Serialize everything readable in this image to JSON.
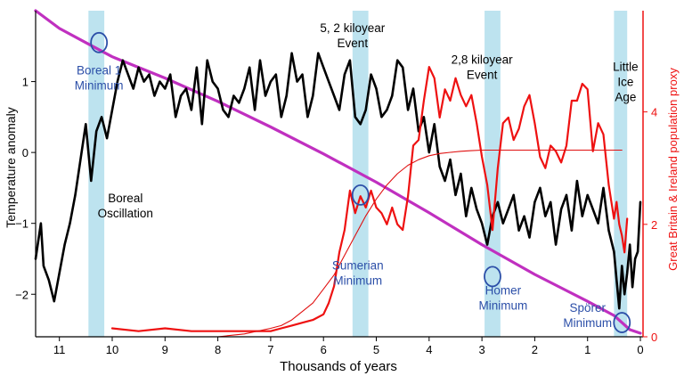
{
  "chart_data": {
    "type": "line",
    "xlabel": "Thousands of years",
    "ylabel_left": "Temperature anomaly",
    "ylabel_right": "Great Britain & Ireland population proxy",
    "x_reversed": true,
    "xlim": [
      11.45,
      -0.05
    ],
    "ylim_left": [
      -2.6,
      2.0
    ],
    "ylim_right": [
      0,
      5.8
    ],
    "x_ticks": [
      11,
      10,
      9,
      8,
      7,
      6,
      5,
      4,
      3,
      2,
      1,
      0
    ],
    "y_ticks_left": [
      1,
      0,
      -1,
      -2
    ],
    "y_ticks_right": [
      0,
      2,
      4
    ],
    "colors": {
      "temperature": "#000000",
      "population": "#ee1111",
      "logistic": "#e01010",
      "trend": "#c030c0",
      "bands": "#bde3ef",
      "annotation_blue": "#2c4fa8",
      "right_axis": "#ee1111"
    },
    "bands": [
      {
        "x0": 10.45,
        "x1": 10.15
      },
      {
        "x0": 5.45,
        "x1": 5.15
      },
      {
        "x0": 2.95,
        "x1": 2.65
      },
      {
        "x0": 0.5,
        "x1": 0.25
      }
    ],
    "series": [
      {
        "key": "temperature",
        "axis": "left",
        "x": [
          11.45,
          11.35,
          11.3,
          11.2,
          11.1,
          11.0,
          10.9,
          10.8,
          10.7,
          10.6,
          10.5,
          10.4,
          10.3,
          10.2,
          10.1,
          10.0,
          9.9,
          9.8,
          9.7,
          9.6,
          9.5,
          9.4,
          9.3,
          9.2,
          9.1,
          9.0,
          8.9,
          8.8,
          8.7,
          8.6,
          8.5,
          8.4,
          8.3,
          8.2,
          8.1,
          8.0,
          7.9,
          7.8,
          7.7,
          7.6,
          7.5,
          7.4,
          7.3,
          7.2,
          7.1,
          7.0,
          6.9,
          6.8,
          6.7,
          6.6,
          6.5,
          6.4,
          6.3,
          6.2,
          6.1,
          6.0,
          5.9,
          5.8,
          5.7,
          5.6,
          5.5,
          5.4,
          5.3,
          5.2,
          5.1,
          5.0,
          4.9,
          4.8,
          4.7,
          4.6,
          4.5,
          4.4,
          4.3,
          4.2,
          4.1,
          4.0,
          3.9,
          3.8,
          3.7,
          3.6,
          3.5,
          3.4,
          3.3,
          3.2,
          3.1,
          3.0,
          2.9,
          2.8,
          2.7,
          2.6,
          2.5,
          2.4,
          2.3,
          2.2,
          2.1,
          2.0,
          1.9,
          1.8,
          1.7,
          1.6,
          1.5,
          1.4,
          1.3,
          1.2,
          1.1,
          1.0,
          0.9,
          0.8,
          0.7,
          0.6,
          0.5,
          0.45,
          0.4,
          0.35,
          0.3,
          0.25,
          0.2,
          0.15,
          0.1,
          0.05,
          0.0
        ],
        "y": [
          -1.5,
          -1.0,
          -1.6,
          -1.8,
          -2.1,
          -1.7,
          -1.3,
          -1.0,
          -0.6,
          -0.1,
          0.4,
          -0.4,
          0.3,
          0.5,
          0.2,
          0.6,
          1.0,
          1.3,
          1.1,
          0.9,
          1.2,
          1.0,
          1.1,
          0.8,
          1.0,
          0.9,
          1.1,
          0.5,
          0.8,
          0.9,
          0.6,
          1.2,
          0.4,
          1.3,
          1.0,
          0.9,
          0.6,
          0.5,
          0.8,
          0.7,
          0.9,
          1.2,
          0.6,
          1.3,
          0.8,
          1.0,
          1.1,
          0.5,
          0.8,
          1.4,
          1.0,
          1.1,
          0.5,
          0.8,
          1.4,
          1.2,
          1.0,
          0.8,
          0.6,
          1.1,
          1.3,
          0.5,
          0.4,
          0.6,
          1.1,
          0.9,
          0.5,
          0.6,
          0.8,
          1.3,
          1.2,
          0.6,
          0.9,
          0.3,
          0.5,
          0.0,
          0.4,
          -0.2,
          -0.4,
          -0.1,
          -0.6,
          -0.3,
          -0.9,
          -0.5,
          -0.8,
          -1.0,
          -1.3,
          -0.9,
          -0.7,
          -1.0,
          -0.8,
          -0.6,
          -1.1,
          -0.9,
          -1.2,
          -0.7,
          -0.5,
          -0.9,
          -0.7,
          -1.3,
          -0.8,
          -0.6,
          -1.1,
          -0.4,
          -0.9,
          -0.6,
          -0.8,
          -1.0,
          -0.5,
          -1.1,
          -1.4,
          -1.8,
          -2.2,
          -1.6,
          -2.0,
          -1.7,
          -1.3,
          -1.9,
          -1.5,
          -1.4,
          -0.7
        ]
      },
      {
        "key": "population",
        "axis": "right",
        "x": [
          10.0,
          9.5,
          9.0,
          8.5,
          8.0,
          7.5,
          7.0,
          6.8,
          6.6,
          6.4,
          6.2,
          6.0,
          5.9,
          5.8,
          5.7,
          5.6,
          5.5,
          5.4,
          5.3,
          5.2,
          5.1,
          5.0,
          4.9,
          4.8,
          4.7,
          4.6,
          4.5,
          4.4,
          4.3,
          4.2,
          4.1,
          4.0,
          3.9,
          3.8,
          3.7,
          3.6,
          3.5,
          3.4,
          3.3,
          3.2,
          3.1,
          3.0,
          2.9,
          2.8,
          2.7,
          2.6,
          2.5,
          2.4,
          2.3,
          2.2,
          2.1,
          2.0,
          1.9,
          1.8,
          1.7,
          1.6,
          1.5,
          1.4,
          1.3,
          1.2,
          1.1,
          1.0,
          0.9,
          0.8,
          0.7,
          0.6,
          0.5,
          0.45,
          0.4,
          0.35,
          0.3,
          0.25
        ],
        "y": [
          0.15,
          0.1,
          0.15,
          0.1,
          0.1,
          0.1,
          0.1,
          0.15,
          0.2,
          0.25,
          0.3,
          0.4,
          0.6,
          0.9,
          1.5,
          1.9,
          2.6,
          2.2,
          2.5,
          2.3,
          2.6,
          2.3,
          2.2,
          2.0,
          2.3,
          2.0,
          1.9,
          2.5,
          3.4,
          3.5,
          4.2,
          4.8,
          4.6,
          3.9,
          4.4,
          4.2,
          4.6,
          4.3,
          4.1,
          4.3,
          3.8,
          3.2,
          2.7,
          1.9,
          3.0,
          3.8,
          3.9,
          3.5,
          3.7,
          4.1,
          4.3,
          3.8,
          3.2,
          3.0,
          3.4,
          3.3,
          3.1,
          3.4,
          4.2,
          4.2,
          4.5,
          4.4,
          3.3,
          3.8,
          3.6,
          2.7,
          2.1,
          2.4,
          2.0,
          1.8,
          1.5,
          2.1
        ]
      },
      {
        "key": "logistic",
        "axis": "right",
        "x": [
          8.0,
          7.5,
          7.0,
          6.8,
          6.6,
          6.4,
          6.2,
          6.0,
          5.8,
          5.6,
          5.4,
          5.2,
          5.0,
          4.8,
          4.6,
          4.4,
          4.2,
          4.0,
          3.8,
          3.6,
          3.4,
          3.2,
          3.0,
          2.5,
          2.0,
          1.5,
          1.0,
          0.5,
          0.35
        ],
        "y": [
          0.0,
          0.05,
          0.15,
          0.2,
          0.3,
          0.45,
          0.6,
          0.85,
          1.1,
          1.45,
          1.8,
          2.15,
          2.45,
          2.7,
          2.9,
          3.05,
          3.15,
          3.22,
          3.26,
          3.28,
          3.3,
          3.31,
          3.32,
          3.32,
          3.32,
          3.32,
          3.32,
          3.32,
          3.32
        ]
      },
      {
        "key": "trend",
        "axis": "left",
        "x": [
          11.45,
          11.0,
          10.5,
          10.0,
          9.0,
          8.0,
          7.0,
          6.0,
          5.0,
          4.0,
          3.0,
          2.0,
          1.0,
          0.5,
          0.2,
          0.0
        ],
        "y": [
          2.0,
          1.75,
          1.55,
          1.35,
          1.05,
          0.72,
          0.36,
          -0.02,
          -0.42,
          -0.85,
          -1.3,
          -1.72,
          -2.1,
          -2.3,
          -2.5,
          -2.55
        ]
      }
    ],
    "annotations": [
      {
        "key": "boreal1",
        "lines": [
          "Boreal 1",
          "Minimum"
        ],
        "x": 10.25,
        "y": 1.1,
        "color": "blue"
      },
      {
        "key": "boreal-osc",
        "lines": [
          "Boreal",
          "Oscillation"
        ],
        "x": 9.75,
        "y": -0.7,
        "color": "black"
      },
      {
        "key": "event52",
        "lines": [
          "5, 2 kiloyear",
          "Event"
        ],
        "x": 5.45,
        "y": 1.7,
        "color": "black"
      },
      {
        "key": "event28",
        "lines": [
          "2,8 kiloyear",
          "Event"
        ],
        "x": 3.0,
        "y": 1.25,
        "color": "black"
      },
      {
        "key": "lia",
        "lines": [
          "Little",
          "Ice",
          "Age"
        ],
        "x": 0.28,
        "y": 1.15,
        "color": "black"
      },
      {
        "key": "sumerian",
        "lines": [
          "Sumerian",
          "Minimum"
        ],
        "x": 5.35,
        "y": -1.65,
        "color": "blue"
      },
      {
        "key": "homer",
        "lines": [
          "Homer",
          "Minimum"
        ],
        "x": 2.6,
        "y": -2.0,
        "color": "blue"
      },
      {
        "key": "sporer",
        "lines": [
          "Spörer",
          "Minimum"
        ],
        "x": 1.0,
        "y": -2.25,
        "color": "blue"
      }
    ],
    "circles": [
      {
        "x": 10.25,
        "y": 1.55
      },
      {
        "x": 5.3,
        "y": -0.6
      },
      {
        "x": 2.8,
        "y": -1.75
      },
      {
        "x": 0.35,
        "y": -2.4
      }
    ]
  }
}
